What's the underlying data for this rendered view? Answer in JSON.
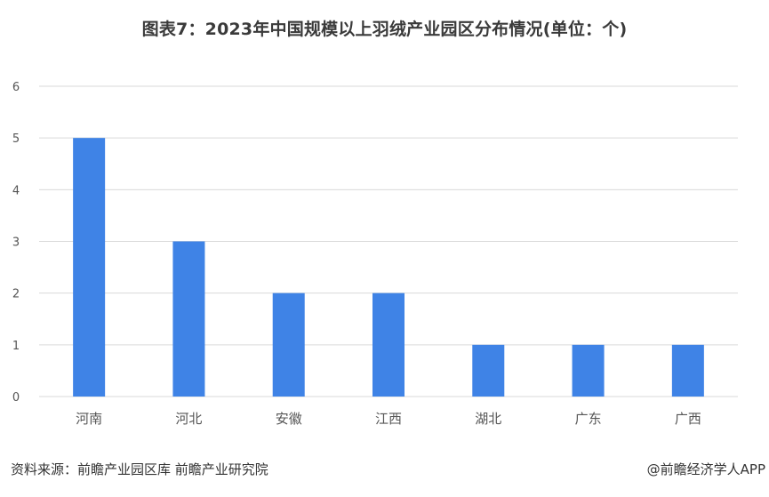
{
  "chart_data": {
    "type": "bar",
    "title": "图表7：2023年中国规模以上羽绒产业园区分布情况(单位：个)",
    "categories": [
      "河南",
      "河北",
      "安徽",
      "江西",
      "湖北",
      "广东",
      "广西"
    ],
    "values": [
      5,
      3,
      2,
      2,
      1,
      1,
      1
    ],
    "ylim": [
      0,
      6
    ],
    "yticks": [
      0,
      1,
      2,
      3,
      4,
      5,
      6
    ],
    "xlabel": "",
    "ylabel": "",
    "grid": true,
    "legend": "none",
    "bar_color": "#3f83e6",
    "grid_color": "#d9d9d9"
  },
  "footer": {
    "source": "资料来源：前瞻产业园区库 前瞻产业研究院",
    "brand": "@前瞻经济学人APP"
  }
}
